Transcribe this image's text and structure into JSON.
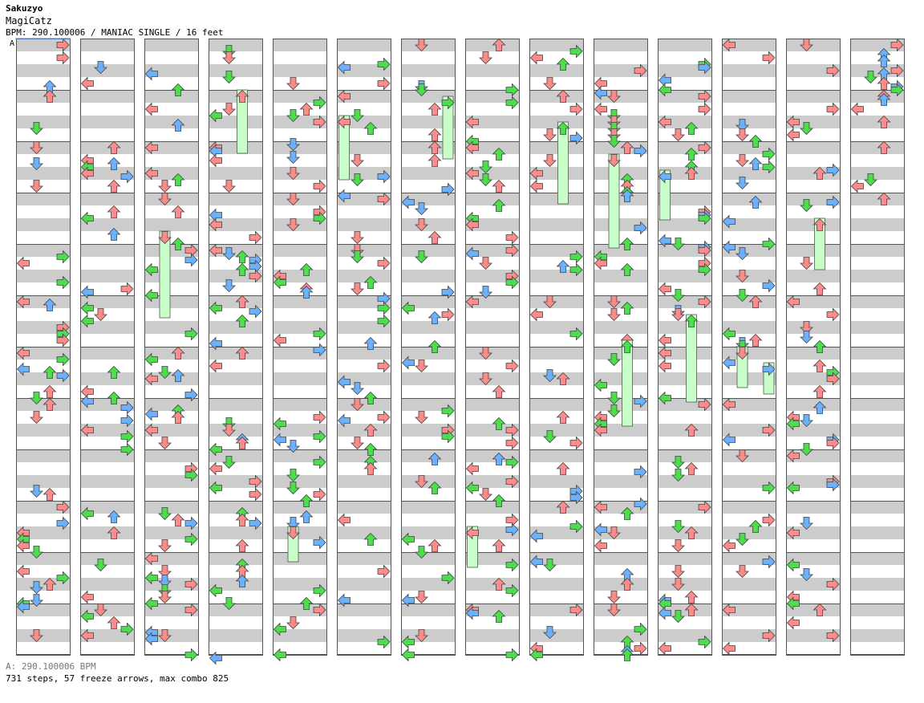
{
  "header": {
    "artist": "Sakuzyo",
    "title": "MagiCatz",
    "info": "BPM: 290.100006 / MANIAC SINGLE / 16 feet"
  },
  "marker": {
    "label": "A"
  },
  "footer": {
    "bpm_line": "A: 290.100006 BPM",
    "stats_line": "731 steps, 57 freeze arrows, max combo 825"
  },
  "chart_data": {
    "type": "step-chart",
    "mode": "SINGLE",
    "difficulty": "MANIAC",
    "level": 16,
    "bpm": 290.100006,
    "steps": 731,
    "freeze_arrows": 57,
    "max_combo": 825,
    "columns": 14,
    "lanes": [
      "left",
      "down",
      "up",
      "right"
    ],
    "colors": {
      "quarter": "#ff8a8a",
      "eighth": "#4be04b",
      "sixteenth": "#6ab2ff",
      "freeze": "#c8ffc8",
      "stripe": "#cccccc"
    }
  }
}
